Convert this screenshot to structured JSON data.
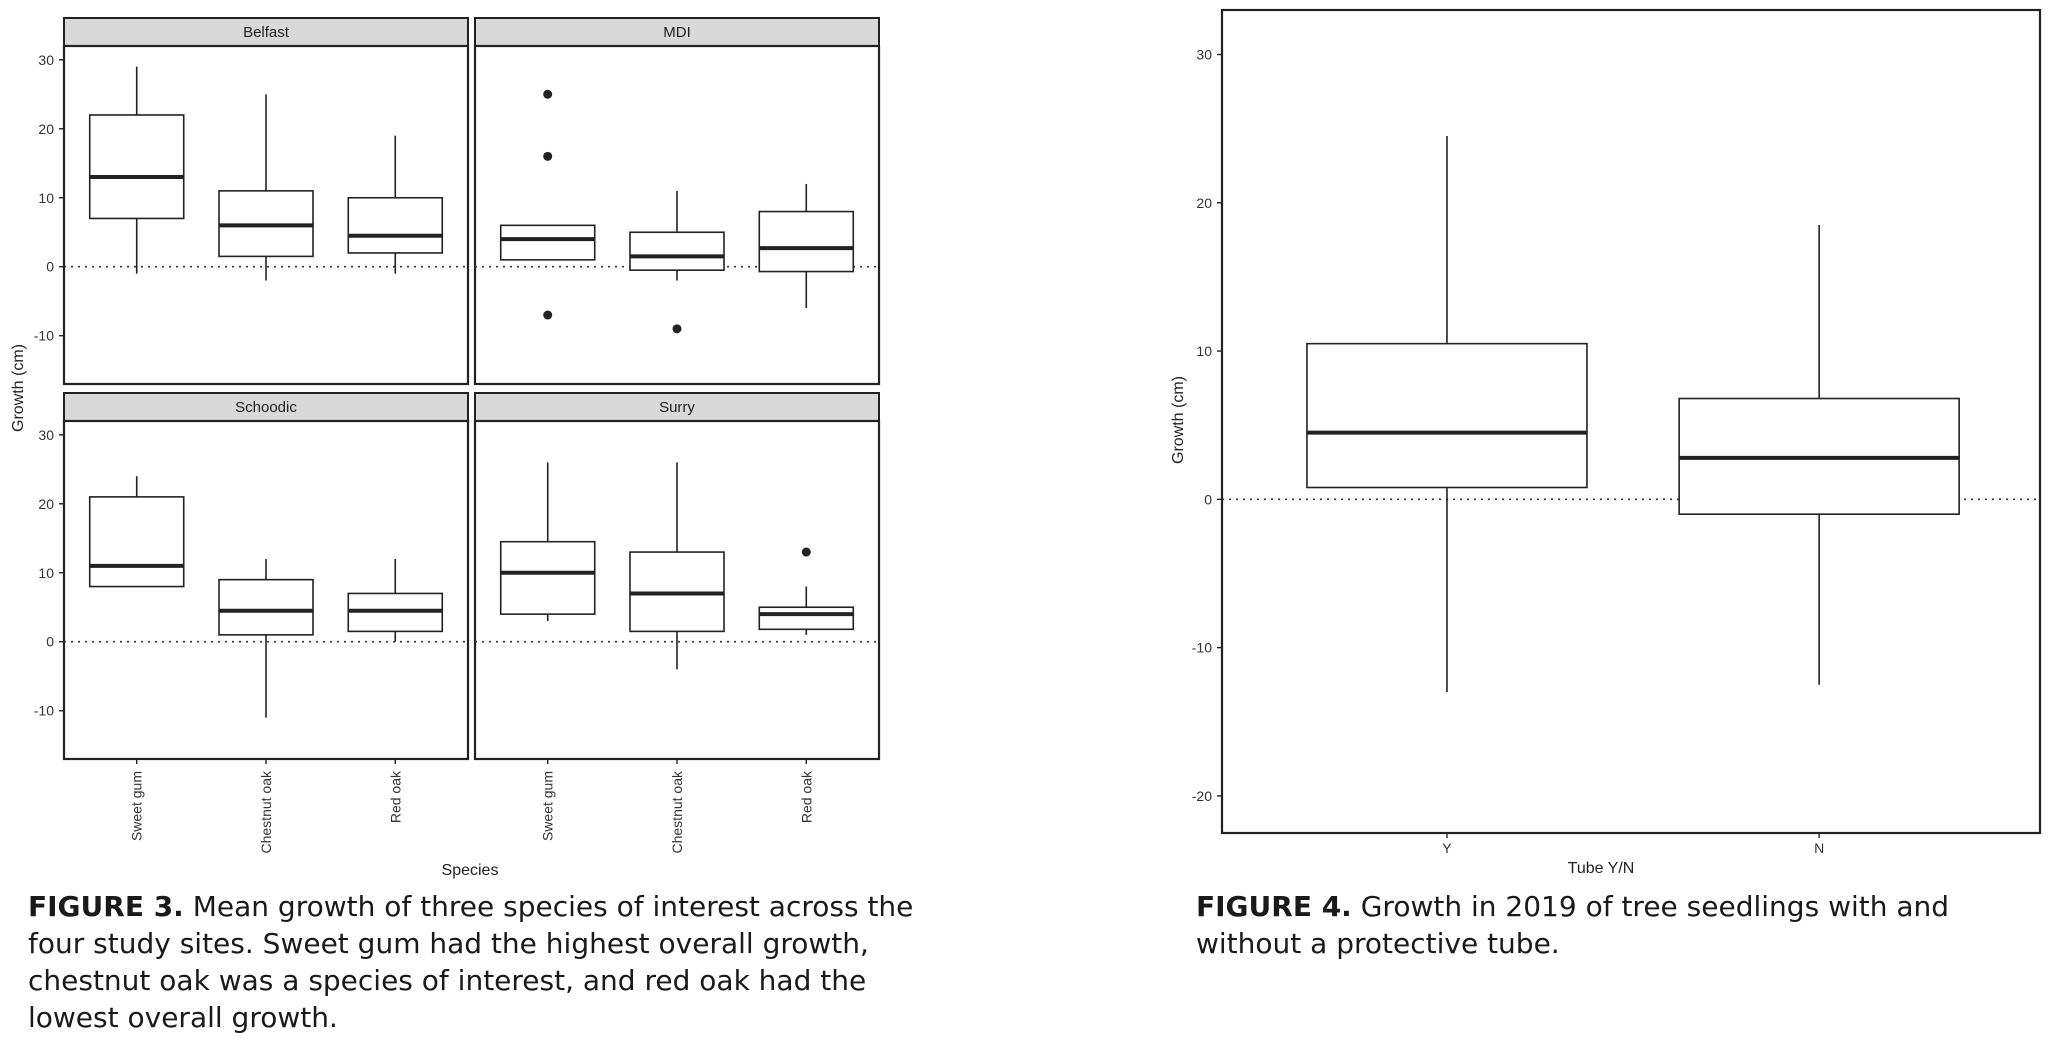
{
  "figure3": {
    "caption_label": "FIGURE 3.",
    "caption_text": "Mean growth of three species of interest across the four study sites. Sweet gum had the highest overall growth, chestnut oak was a species of interest, and red oak had the lowest overall growth."
  },
  "figure4": {
    "caption_label": "FIGURE 4.",
    "caption_text": "Growth in 2019 of tree seedlings with and without a protective tube."
  },
  "chart_data": [
    {
      "type": "boxplot",
      "facets": true,
      "xlabel": "Species",
      "ylabel": "Growth (cm)",
      "ylim": [
        -17,
        32
      ],
      "yticks": [
        -10,
        0,
        10,
        20,
        30
      ],
      "reference_line": 0,
      "categories": [
        "Sweet gum",
        "Chestnut oak",
        "Red oak"
      ],
      "panels": [
        {
          "name": "Belfast",
          "boxes": [
            {
              "category": "Sweet gum",
              "whisker_low": -1,
              "q1": 7,
              "median": 13,
              "q3": 22,
              "whisker_high": 29,
              "outliers": []
            },
            {
              "category": "Chestnut oak",
              "whisker_low": -2,
              "q1": 1.5,
              "median": 6,
              "q3": 11,
              "whisker_high": 25,
              "outliers": []
            },
            {
              "category": "Red oak",
              "whisker_low": -1,
              "q1": 2,
              "median": 4.5,
              "q3": 10,
              "whisker_high": 19,
              "outliers": []
            }
          ]
        },
        {
          "name": "MDI",
          "boxes": [
            {
              "category": "Sweet gum",
              "whisker_low": 1,
              "q1": 1,
              "median": 4,
              "q3": 6,
              "whisker_high": 6,
              "outliers": [
                25,
                16,
                -7
              ]
            },
            {
              "category": "Chestnut oak",
              "whisker_low": -2,
              "q1": -0.5,
              "median": 1.5,
              "q3": 5,
              "whisker_high": 11,
              "outliers": [
                -9
              ]
            },
            {
              "category": "Red oak",
              "whisker_low": -6,
              "q1": -0.7,
              "median": 2.7,
              "q3": 8,
              "whisker_high": 12,
              "outliers": []
            }
          ]
        },
        {
          "name": "Schoodic",
          "boxes": [
            {
              "category": "Sweet gum",
              "whisker_low": 8,
              "q1": 8,
              "median": 11,
              "q3": 21,
              "whisker_high": 24,
              "outliers": []
            },
            {
              "category": "Chestnut oak",
              "whisker_low": -11,
              "q1": 1,
              "median": 4.5,
              "q3": 9,
              "whisker_high": 12,
              "outliers": []
            },
            {
              "category": "Red oak",
              "whisker_low": 0,
              "q1": 1.5,
              "median": 4.5,
              "q3": 7,
              "whisker_high": 12,
              "outliers": []
            }
          ]
        },
        {
          "name": "Surry",
          "boxes": [
            {
              "category": "Sweet gum",
              "whisker_low": 3,
              "q1": 4,
              "median": 10,
              "q3": 14.5,
              "whisker_high": 26,
              "outliers": []
            },
            {
              "category": "Chestnut oak",
              "whisker_low": -4,
              "q1": 1.5,
              "median": 7,
              "q3": 13,
              "whisker_high": 26,
              "outliers": []
            },
            {
              "category": "Red oak",
              "whisker_low": 1,
              "q1": 1.8,
              "median": 4,
              "q3": 5,
              "whisker_high": 8,
              "outliers": [
                13
              ]
            }
          ]
        }
      ]
    },
    {
      "type": "boxplot",
      "xlabel": "Tube Y/N",
      "ylabel": "Growth (cm)",
      "ylim": [
        -22.5,
        33
      ],
      "yticks": [
        -20,
        -10,
        0,
        10,
        20,
        30
      ],
      "reference_line": 0,
      "categories": [
        "Y",
        "N"
      ],
      "boxes": [
        {
          "category": "Y",
          "whisker_low": -13,
          "q1": 0.8,
          "median": 4.5,
          "q3": 10.5,
          "whisker_high": 24.5,
          "outliers": []
        },
        {
          "category": "N",
          "whisker_low": -12.5,
          "q1": -1,
          "median": 2.8,
          "q3": 6.8,
          "whisker_high": 18.5,
          "outliers": []
        }
      ]
    }
  ]
}
